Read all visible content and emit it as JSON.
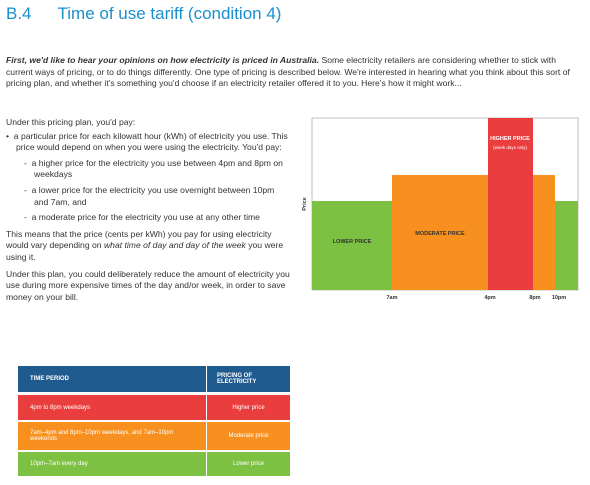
{
  "header": {
    "number": "B.4",
    "title": "Time of use tariff (condition 4)"
  },
  "intro": {
    "lead": "First, we'd like to hear your opinions on how electricity is priced in Australia.",
    "rest": " Some electricity retailers are considering whether to stick with current ways of pricing, or to do things differently. One type of pricing is described below. We're interested in hearing what you think about this sort of pricing plan, and whether it's something you'd choose if an electricity retailer offered it to you. Here's how it might work..."
  },
  "body": {
    "plan_intro": "Under this pricing plan, you'd pay:",
    "bullet": "a particular price for each kilowatt hour (kWh) of electricity you use. This price would depend on when you were using the electricity. You'd pay:",
    "sub_bullets": [
      "a higher price for the electricity you use between 4pm and 8pm on weekdays",
      "a lower price for the electricity you use overnight between 10pm and 7am, and",
      "a moderate price for the electricity you use at any other time"
    ],
    "means": [
      "This means that the price (cents per kWh) you pay for using electricity would vary depending on ",
      "what time of day and day of the week",
      " you were using it."
    ],
    "closing": "Under this plan, you could deliberately reduce the amount of electricity you use during more expensive times of the day and/or week, in order to save money on your bill."
  },
  "diagram": {
    "y_label": "Price",
    "x_labels": [
      "7am",
      "4pm",
      "8pm",
      "10pm"
    ],
    "lower": "LOWER PRICE",
    "moderate": "MODERATE PRICE",
    "higher": "HIGHER PRICE",
    "higher_note": "(week days only)"
  },
  "table": {
    "header": [
      "TIME PERIOD",
      "PRICING OF ELECTRICITY"
    ],
    "rows": [
      [
        "4pm to 8pm weekdays",
        "Higher price"
      ],
      [
        "7am–4pm and 8pm–10pm weekdays, and 7am–10pm weekends",
        "Moderate price"
      ],
      [
        "10pm–7am every day",
        "Lower price"
      ]
    ]
  }
}
